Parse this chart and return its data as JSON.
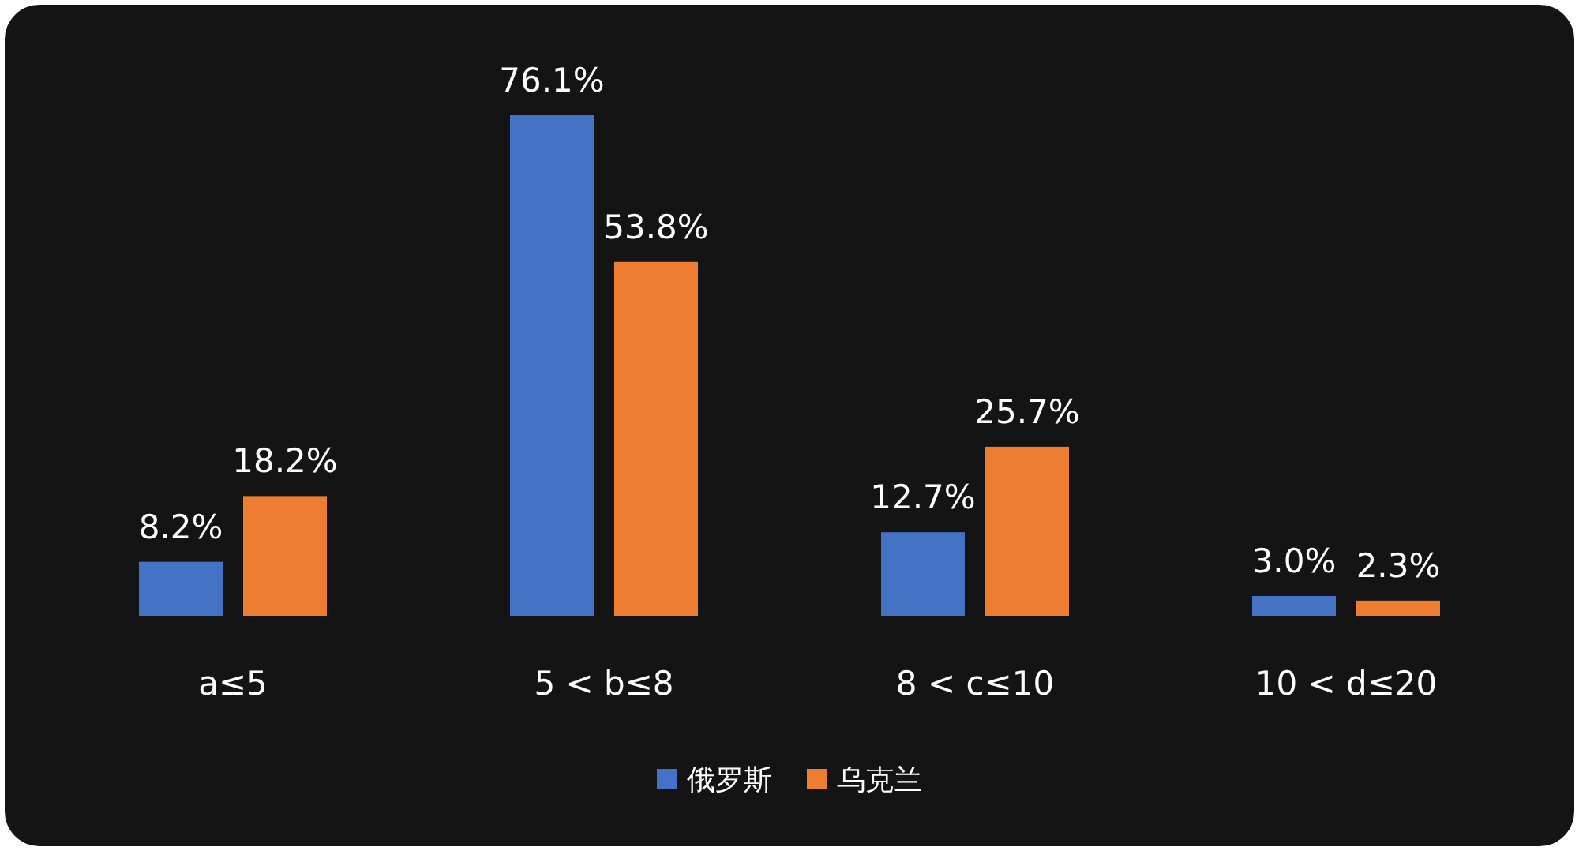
{
  "chart_data": {
    "type": "bar",
    "categories": [
      "a≤5",
      "5 < b≤8",
      "8 < c≤10",
      "10 < d≤20"
    ],
    "series": [
      {
        "name": "俄罗斯",
        "color": "#4472c4",
        "values": [
          8.2,
          76.1,
          12.7,
          3.0
        ],
        "value_labels": [
          "8.2%",
          "76.1%",
          "12.7%",
          "3.0%"
        ]
      },
      {
        "name": "乌克兰",
        "color": "#ed7d31",
        "values": [
          18.2,
          53.8,
          25.7,
          2.3
        ],
        "value_labels": [
          "18.2%",
          "53.8%",
          "25.7%",
          "2.3%"
        ]
      }
    ],
    "legend": "bottom"
  }
}
